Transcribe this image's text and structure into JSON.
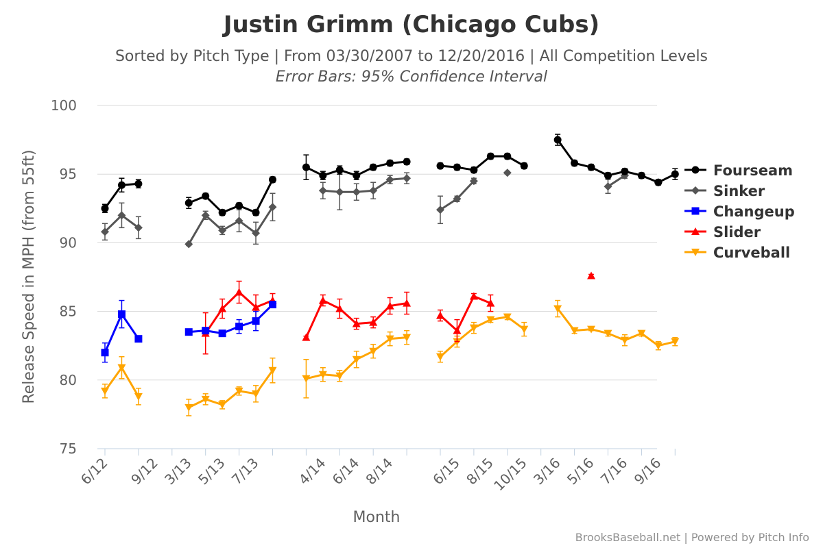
{
  "chart_data": {
    "type": "line",
    "title": "Justin Grimm (Chicago Cubs)",
    "subtitle": "Sorted by Pitch Type | From 03/30/2007 to 12/20/2016 | All Competition Levels",
    "subtitle2": "Error Bars: 95% Confidence Interval",
    "xlabel": "Month",
    "ylabel": "Release Speed in MPH (from 55ft)",
    "ylim": [
      75,
      100
    ],
    "yticks": [
      75,
      80,
      85,
      90,
      95,
      100
    ],
    "grid": true,
    "legend_position": "right",
    "credits": "BrooksBaseball.net | Powered by Pitch Info",
    "x_categories": [
      "6/12",
      "7/12",
      "8/12",
      "9/12",
      "gap",
      "3/13",
      "4/13",
      "5/13",
      "6/13",
      "7/13",
      "8/13",
      "gap",
      "3/14",
      "4/14",
      "5/14",
      "6/14",
      "7/14",
      "8/14",
      "9/14",
      "gap",
      "5/15",
      "6/15",
      "7/15",
      "8/15",
      "9/15",
      "10/15",
      "gap",
      "3/16",
      "4/16",
      "5/16",
      "6/16",
      "7/16",
      "8/16",
      "9/16",
      "10/16"
    ],
    "x_tick_labels": [
      "6/12",
      "9/12",
      "3/13",
      "5/13",
      "7/13",
      "4/14",
      "6/14",
      "8/14",
      "6/15",
      "8/15",
      "10/15",
      "3/16",
      "5/16",
      "7/16",
      "9/16"
    ],
    "series": [
      {
        "name": "Fourseam",
        "color": "#000000",
        "marker": "circle",
        "values": [
          92.5,
          94.2,
          94.3,
          null,
          null,
          92.9,
          93.4,
          92.2,
          92.7,
          92.2,
          94.6,
          null,
          95.5,
          94.9,
          95.3,
          94.9,
          95.5,
          95.8,
          95.9,
          null,
          95.6,
          95.5,
          95.3,
          96.3,
          96.3,
          95.6,
          null,
          97.5,
          95.8,
          95.5,
          94.9,
          95.2,
          94.9,
          94.4,
          95.0
        ],
        "err": [
          0.3,
          0.5,
          0.3,
          null,
          null,
          0.4,
          0.2,
          0.2,
          0.2,
          0.2,
          0.2,
          null,
          0.9,
          0.3,
          0.3,
          0.3,
          0.2,
          0.2,
          0.2,
          null,
          0.2,
          0.2,
          0.2,
          0.2,
          0.2,
          0.2,
          null,
          0.4,
          0.2,
          0.2,
          0.2,
          0.2,
          0.2,
          0.2,
          0.4
        ]
      },
      {
        "name": "Sinker",
        "color": "#555555",
        "marker": "diamond",
        "values": [
          90.8,
          92.0,
          91.1,
          null,
          null,
          89.9,
          92.0,
          90.9,
          91.6,
          90.7,
          92.6,
          null,
          null,
          93.8,
          93.7,
          93.7,
          93.8,
          94.6,
          94.7,
          null,
          92.4,
          93.2,
          94.5,
          null,
          95.1,
          null,
          null,
          null,
          null,
          null,
          94.1,
          94.9,
          null,
          94.4,
          null
        ],
        "err": [
          0.6,
          0.9,
          0.8,
          null,
          null,
          0.1,
          0.3,
          0.3,
          0.8,
          0.8,
          1.0,
          null,
          null,
          0.6,
          1.3,
          0.6,
          0.6,
          0.3,
          0.4,
          null,
          1.0,
          0.2,
          0.2,
          null,
          0.1,
          null,
          null,
          null,
          null,
          null,
          0.5,
          0.2,
          null,
          0.1,
          null
        ]
      },
      {
        "name": "Changeup",
        "color": "#0000ff",
        "marker": "square",
        "values": [
          82.0,
          84.8,
          83.0,
          null,
          null,
          83.5,
          83.6,
          83.4,
          83.9,
          84.3,
          85.5,
          null,
          null,
          null,
          null,
          null,
          null,
          null,
          null,
          null,
          null,
          null,
          null,
          null,
          null,
          null,
          null,
          null,
          null,
          null,
          null,
          null,
          null,
          null,
          null
        ],
        "err": [
          0.7,
          1.0,
          0.2,
          null,
          null,
          0.2,
          0.2,
          0.1,
          0.5,
          0.7,
          0.2,
          null,
          null,
          null,
          null,
          null,
          null,
          null,
          null,
          null,
          null,
          null,
          null,
          null,
          null,
          null,
          null,
          null,
          null,
          null,
          null,
          null,
          null,
          null,
          null
        ]
      },
      {
        "name": "Slider",
        "color": "#ff0000",
        "marker": "triangle",
        "values": [
          null,
          null,
          null,
          null,
          null,
          null,
          83.4,
          85.2,
          86.4,
          85.3,
          85.8,
          null,
          83.1,
          85.8,
          85.2,
          84.1,
          84.2,
          85.4,
          85.6,
          null,
          84.7,
          83.6,
          86.1,
          85.6,
          null,
          null,
          null,
          null,
          null,
          87.6,
          null,
          null,
          null,
          null,
          null
        ],
        "err": [
          null,
          null,
          null,
          null,
          null,
          null,
          1.5,
          0.7,
          0.8,
          0.9,
          0.5,
          null,
          0.1,
          0.4,
          0.7,
          0.4,
          0.4,
          0.6,
          0.8,
          null,
          0.4,
          0.8,
          0.2,
          0.6,
          null,
          null,
          null,
          null,
          null,
          0.1,
          null,
          null,
          null,
          null,
          null
        ]
      },
      {
        "name": "Curveball",
        "color": "#ffa500",
        "marker": "triangle-down",
        "values": [
          79.2,
          80.9,
          78.8,
          null,
          null,
          78.0,
          78.6,
          78.2,
          79.2,
          79.0,
          80.7,
          null,
          80.1,
          80.4,
          80.3,
          81.5,
          82.1,
          83.0,
          83.1,
          null,
          81.7,
          82.8,
          83.8,
          84.4,
          84.6,
          83.7,
          null,
          85.2,
          83.6,
          83.7,
          83.4,
          82.9,
          83.4,
          82.5,
          82.8
        ],
        "err": [
          0.5,
          0.8,
          0.6,
          null,
          null,
          0.6,
          0.4,
          0.3,
          0.3,
          0.6,
          0.9,
          null,
          1.4,
          0.5,
          0.4,
          0.6,
          0.5,
          0.5,
          0.5,
          null,
          0.4,
          0.4,
          0.4,
          0.2,
          0.2,
          0.5,
          null,
          0.6,
          0.2,
          0.1,
          0.2,
          0.4,
          0.2,
          0.3,
          0.3
        ]
      }
    ]
  }
}
